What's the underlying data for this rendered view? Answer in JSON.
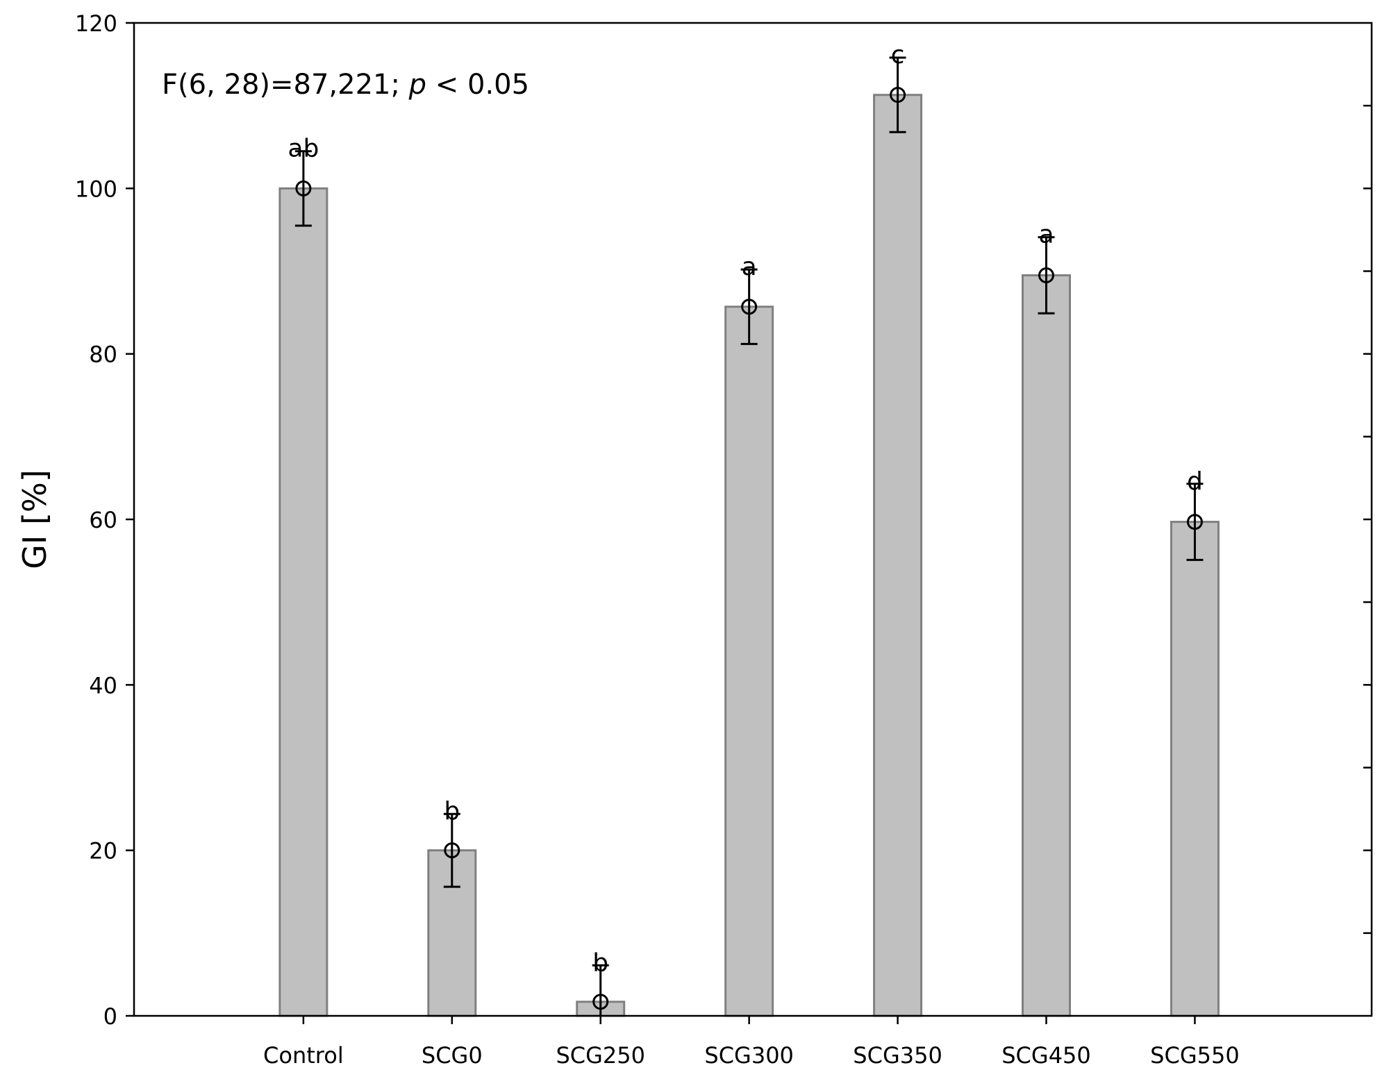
{
  "chart_data": {
    "type": "bar",
    "categories": [
      "Control",
      "SCG0",
      "SCG250",
      "SCG300",
      "SCG350",
      "SCG450",
      "SCG550"
    ],
    "values": [
      100,
      20,
      1.7,
      85.7,
      111.3,
      89.5,
      59.7
    ],
    "error": [
      4.5,
      4.4,
      4.4,
      4.5,
      4.5,
      4.6,
      4.6
    ],
    "group_labels": [
      "ab",
      "b",
      "b",
      "a",
      "c",
      "a",
      "d"
    ],
    "ylabel": "GI [%]",
    "ylim": [
      0,
      120
    ],
    "yticks": [
      0,
      20,
      40,
      60,
      80,
      100,
      120
    ],
    "annotation": {
      "prefix": "F(6, 28)=87,221; ",
      "italic": "p",
      "suffix": " < 0.05"
    },
    "grid": false,
    "colors": {
      "bar_fill": "#c0c0c0",
      "bar_stroke": "#808080",
      "marker": "#000000"
    }
  }
}
